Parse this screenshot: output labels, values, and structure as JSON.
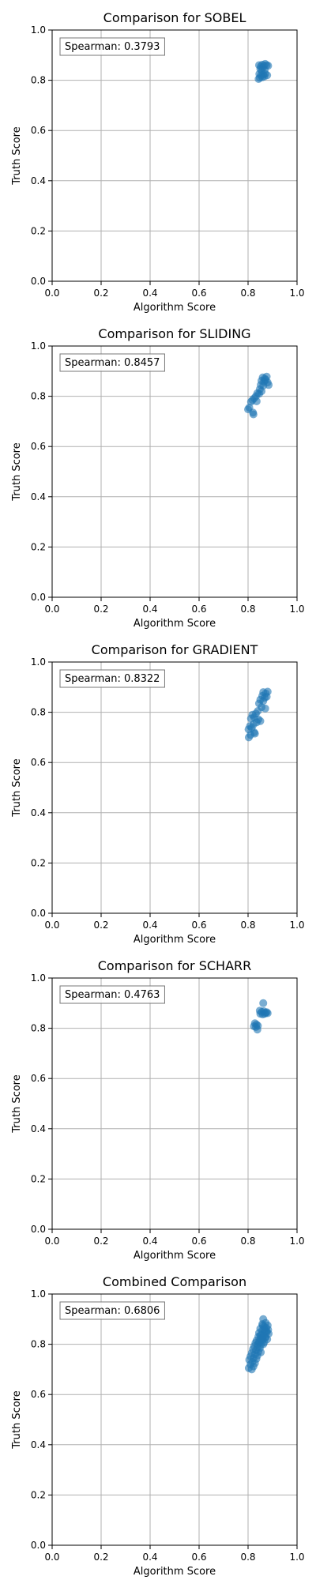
{
  "chart_data": [
    {
      "type": "scatter",
      "title": "Comparison for SOBEL",
      "xlabel": "Algorithm Score",
      "ylabel": "Truth Score",
      "xlim": [
        0,
        1
      ],
      "ylim": [
        0,
        1
      ],
      "ticks": [
        "0.0",
        "0.2",
        "0.4",
        "0.6",
        "0.8",
        "1.0"
      ],
      "grid": true,
      "annotation": "Spearman: 0.3793",
      "color": "#1f77b4",
      "points": [
        [
          0.845,
          0.86
        ],
        [
          0.852,
          0.855
        ],
        [
          0.858,
          0.862
        ],
        [
          0.864,
          0.858
        ],
        [
          0.87,
          0.865
        ],
        [
          0.876,
          0.86
        ],
        [
          0.882,
          0.858
        ],
        [
          0.85,
          0.845
        ],
        [
          0.86,
          0.85
        ],
        [
          0.868,
          0.842
        ],
        [
          0.856,
          0.838
        ],
        [
          0.846,
          0.825
        ],
        [
          0.853,
          0.82
        ],
        [
          0.862,
          0.822
        ],
        [
          0.87,
          0.826
        ],
        [
          0.878,
          0.82
        ],
        [
          0.848,
          0.81
        ],
        [
          0.858,
          0.812
        ],
        [
          0.866,
          0.815
        ],
        [
          0.843,
          0.805
        ]
      ]
    },
    {
      "type": "scatter",
      "title": "Comparison for SLIDING",
      "xlabel": "Algorithm Score",
      "ylabel": "Truth Score",
      "xlim": [
        0,
        1
      ],
      "ylim": [
        0,
        1
      ],
      "ticks": [
        "0.0",
        "0.2",
        "0.4",
        "0.6",
        "0.8",
        "1.0"
      ],
      "grid": true,
      "annotation": "Spearman: 0.8457",
      "color": "#1f77b4",
      "points": [
        [
          0.86,
          0.875
        ],
        [
          0.868,
          0.87
        ],
        [
          0.876,
          0.878
        ],
        [
          0.855,
          0.862
        ],
        [
          0.865,
          0.858
        ],
        [
          0.872,
          0.865
        ],
        [
          0.88,
          0.855
        ],
        [
          0.884,
          0.845
        ],
        [
          0.852,
          0.845
        ],
        [
          0.862,
          0.842
        ],
        [
          0.848,
          0.828
        ],
        [
          0.855,
          0.82
        ],
        [
          0.845,
          0.81
        ],
        [
          0.838,
          0.812
        ],
        [
          0.832,
          0.8
        ],
        [
          0.825,
          0.792
        ],
        [
          0.818,
          0.785
        ],
        [
          0.812,
          0.778
        ],
        [
          0.805,
          0.755
        ],
        [
          0.8,
          0.748
        ],
        [
          0.82,
          0.735
        ],
        [
          0.822,
          0.728
        ],
        [
          0.835,
          0.78
        ]
      ]
    },
    {
      "type": "scatter",
      "title": "Comparison for GRADIENT",
      "xlabel": "Algorithm Score",
      "ylabel": "Truth Score",
      "xlim": [
        0,
        1
      ],
      "ylim": [
        0,
        1
      ],
      "ticks": [
        "0.0",
        "0.2",
        "0.4",
        "0.6",
        "0.8",
        "1.0"
      ],
      "grid": true,
      "annotation": "Spearman: 0.8322",
      "color": "#1f77b4",
      "points": [
        [
          0.862,
          0.88
        ],
        [
          0.872,
          0.875
        ],
        [
          0.88,
          0.882
        ],
        [
          0.858,
          0.865
        ],
        [
          0.868,
          0.858
        ],
        [
          0.876,
          0.862
        ],
        [
          0.85,
          0.85
        ],
        [
          0.862,
          0.845
        ],
        [
          0.845,
          0.835
        ],
        [
          0.855,
          0.82
        ],
        [
          0.87,
          0.815
        ],
        [
          0.84,
          0.805
        ],
        [
          0.832,
          0.795
        ],
        [
          0.818,
          0.79
        ],
        [
          0.825,
          0.78
        ],
        [
          0.812,
          0.775
        ],
        [
          0.842,
          0.772
        ],
        [
          0.85,
          0.765
        ],
        [
          0.835,
          0.76
        ],
        [
          0.822,
          0.752
        ],
        [
          0.808,
          0.745
        ],
        [
          0.815,
          0.738
        ],
        [
          0.802,
          0.732
        ],
        [
          0.825,
          0.72
        ],
        [
          0.81,
          0.71
        ],
        [
          0.803,
          0.7
        ],
        [
          0.828,
          0.715
        ]
      ]
    },
    {
      "type": "scatter",
      "title": "Comparison for SCHARR",
      "xlabel": "Algorithm Score",
      "ylabel": "Truth Score",
      "xlim": [
        0,
        1
      ],
      "ylim": [
        0,
        1
      ],
      "ticks": [
        "0.0",
        "0.2",
        "0.4",
        "0.6",
        "0.8",
        "1.0"
      ],
      "grid": true,
      "annotation": "Spearman: 0.4763",
      "color": "#1f77b4",
      "points": [
        [
          0.862,
          0.9
        ],
        [
          0.848,
          0.87
        ],
        [
          0.856,
          0.865
        ],
        [
          0.864,
          0.868
        ],
        [
          0.872,
          0.862
        ],
        [
          0.88,
          0.86
        ],
        [
          0.85,
          0.858
        ],
        [
          0.86,
          0.855
        ],
        [
          0.868,
          0.858
        ],
        [
          0.876,
          0.864
        ],
        [
          0.828,
          0.82
        ],
        [
          0.834,
          0.815
        ],
        [
          0.84,
          0.81
        ],
        [
          0.824,
          0.808
        ],
        [
          0.832,
          0.805
        ],
        [
          0.838,
          0.795
        ]
      ]
    },
    {
      "type": "scatter",
      "title": "Combined Comparison",
      "xlabel": "Algorithm Score",
      "ylabel": "Truth Score",
      "xlim": [
        0,
        1
      ],
      "ylim": [
        0,
        1
      ],
      "ticks": [
        "0.0",
        "0.2",
        "0.4",
        "0.6",
        "0.8",
        "1.0"
      ],
      "grid": true,
      "annotation": "Spearman: 0.6806",
      "color": "#1f77b4",
      "points": [
        [
          0.862,
          0.9
        ],
        [
          0.872,
          0.885
        ],
        [
          0.88,
          0.875
        ],
        [
          0.858,
          0.88
        ],
        [
          0.866,
          0.87
        ],
        [
          0.874,
          0.865
        ],
        [
          0.882,
          0.858
        ],
        [
          0.85,
          0.862
        ],
        [
          0.858,
          0.855
        ],
        [
          0.868,
          0.85
        ],
        [
          0.876,
          0.848
        ],
        [
          0.884,
          0.842
        ],
        [
          0.845,
          0.845
        ],
        [
          0.855,
          0.838
        ],
        [
          0.864,
          0.835
        ],
        [
          0.872,
          0.83
        ],
        [
          0.842,
          0.83
        ],
        [
          0.85,
          0.822
        ],
        [
          0.86,
          0.82
        ],
        [
          0.87,
          0.825
        ],
        [
          0.878,
          0.82
        ],
        [
          0.835,
          0.815
        ],
        [
          0.845,
          0.81
        ],
        [
          0.856,
          0.812
        ],
        [
          0.866,
          0.808
        ],
        [
          0.83,
          0.805
        ],
        [
          0.84,
          0.8
        ],
        [
          0.852,
          0.798
        ],
        [
          0.862,
          0.8
        ],
        [
          0.825,
          0.792
        ],
        [
          0.838,
          0.788
        ],
        [
          0.848,
          0.785
        ],
        [
          0.82,
          0.78
        ],
        [
          0.832,
          0.776
        ],
        [
          0.842,
          0.77
        ],
        [
          0.852,
          0.768
        ],
        [
          0.815,
          0.765
        ],
        [
          0.828,
          0.76
        ],
        [
          0.838,
          0.755
        ],
        [
          0.81,
          0.752
        ],
        [
          0.822,
          0.745
        ],
        [
          0.834,
          0.742
        ],
        [
          0.805,
          0.738
        ],
        [
          0.818,
          0.73
        ],
        [
          0.828,
          0.725
        ],
        [
          0.81,
          0.72
        ],
        [
          0.822,
          0.712
        ],
        [
          0.803,
          0.705
        ],
        [
          0.815,
          0.7
        ],
        [
          0.86,
          0.875
        ],
        [
          0.865,
          0.86
        ],
        [
          0.875,
          0.852
        ],
        [
          0.85,
          0.835
        ],
        [
          0.858,
          0.826
        ],
        [
          0.846,
          0.806
        ]
      ]
    }
  ]
}
